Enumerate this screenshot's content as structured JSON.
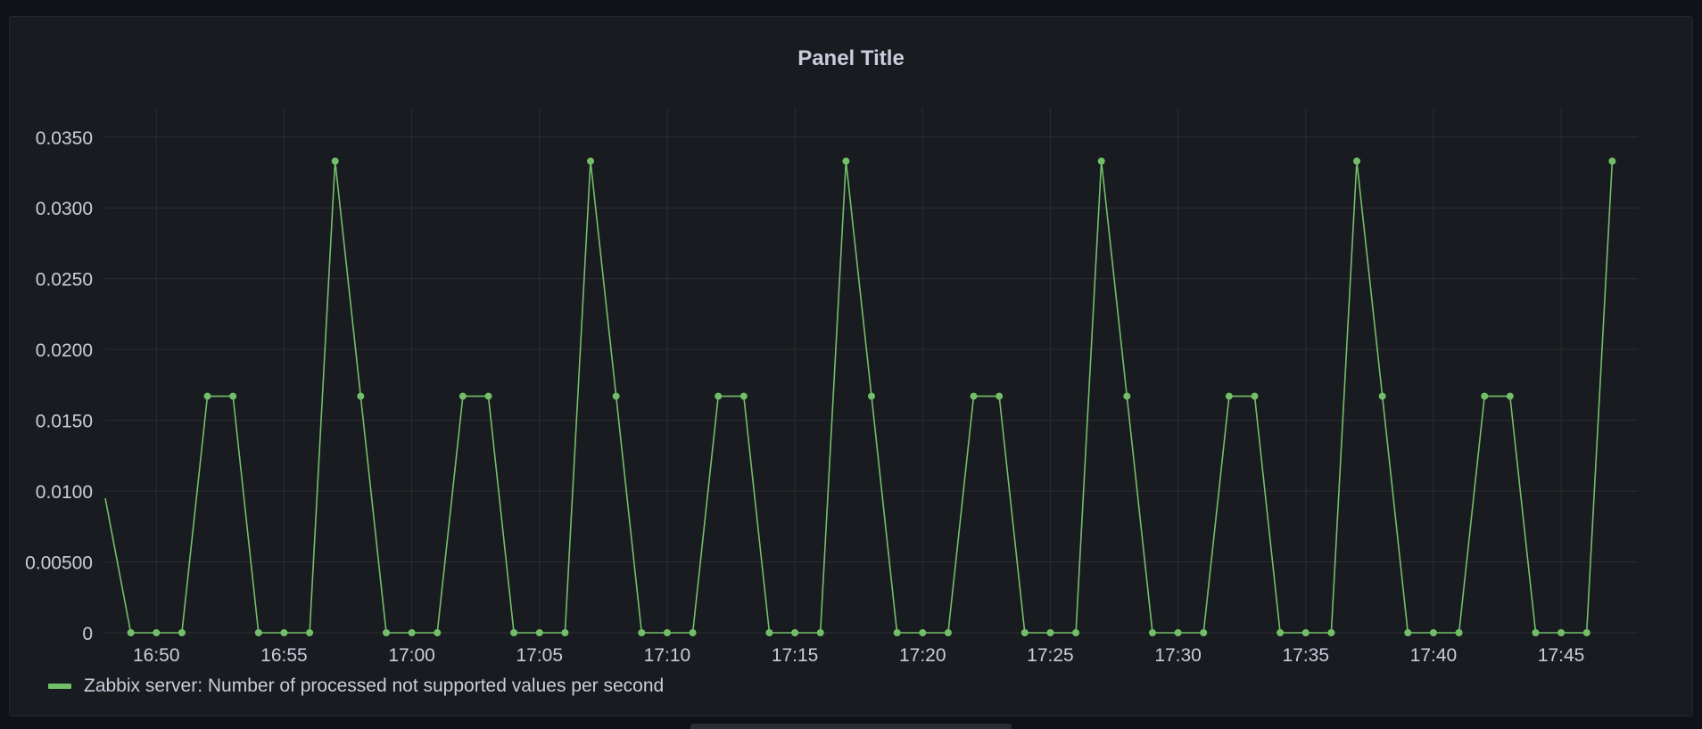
{
  "panel": {
    "title": "Panel Title"
  },
  "colors": {
    "series": "#73bf69",
    "grid": "#2c2e33",
    "axis_text": "#ccccdc",
    "background": "#181b1f"
  },
  "chart_data": {
    "type": "line",
    "title": "Panel Title",
    "xlabel": "",
    "ylabel": "",
    "ylim": [
      0,
      0.037
    ],
    "y_ticks": [
      "0",
      "0.00500",
      "0.0100",
      "0.0150",
      "0.0200",
      "0.0250",
      "0.0300",
      "0.0350"
    ],
    "y_tick_values": [
      0,
      0.005,
      0.01,
      0.015,
      0.02,
      0.025,
      0.03,
      0.035
    ],
    "x_ticks": [
      "16:50",
      "16:55",
      "17:00",
      "17:05",
      "17:10",
      "17:15",
      "17:20",
      "17:25",
      "17:30",
      "17:35",
      "17:40",
      "17:45"
    ],
    "x_range": [
      "16:48",
      "17:48"
    ],
    "grid": true,
    "legend_placement": "bottom-left",
    "series": [
      {
        "name": "Zabbix server: Number of processed not supported values per second",
        "x": [
          "16:49",
          "16:50",
          "16:51",
          "16:52",
          "16:53",
          "16:54",
          "16:55",
          "16:56",
          "16:57",
          "16:58",
          "16:59",
          "17:00",
          "17:01",
          "17:02",
          "17:03",
          "17:04",
          "17:05",
          "17:06",
          "17:07",
          "17:08",
          "17:09",
          "17:10",
          "17:11",
          "17:12",
          "17:13",
          "17:14",
          "17:15",
          "17:16",
          "17:17",
          "17:18",
          "17:19",
          "17:20",
          "17:21",
          "17:22",
          "17:23",
          "17:24",
          "17:25",
          "17:26",
          "17:27",
          "17:28",
          "17:29",
          "17:30",
          "17:31",
          "17:32",
          "17:33",
          "17:34",
          "17:35",
          "17:36",
          "17:37",
          "17:38",
          "17:39",
          "17:40",
          "17:41",
          "17:42",
          "17:43",
          "17:44",
          "17:45",
          "17:46",
          "17:47"
        ],
        "values": [
          0,
          0,
          0,
          0.0167,
          0.0167,
          0,
          0,
          0,
          0.0333,
          0.0167,
          0,
          0,
          0,
          0.0167,
          0.0167,
          0,
          0,
          0,
          0.0333,
          0.0167,
          0,
          0,
          0,
          0.0167,
          0.0167,
          0,
          0,
          0,
          0.0333,
          0.0167,
          0,
          0,
          0,
          0.0167,
          0.0167,
          0,
          0,
          0,
          0.0333,
          0.0167,
          0,
          0,
          0,
          0.0167,
          0.0167,
          0,
          0,
          0,
          0.0333,
          0.0167,
          0,
          0,
          0,
          0.0167,
          0.0167,
          0,
          0,
          0,
          0.0333
        ],
        "line_start_value": 0.0095
      }
    ]
  }
}
